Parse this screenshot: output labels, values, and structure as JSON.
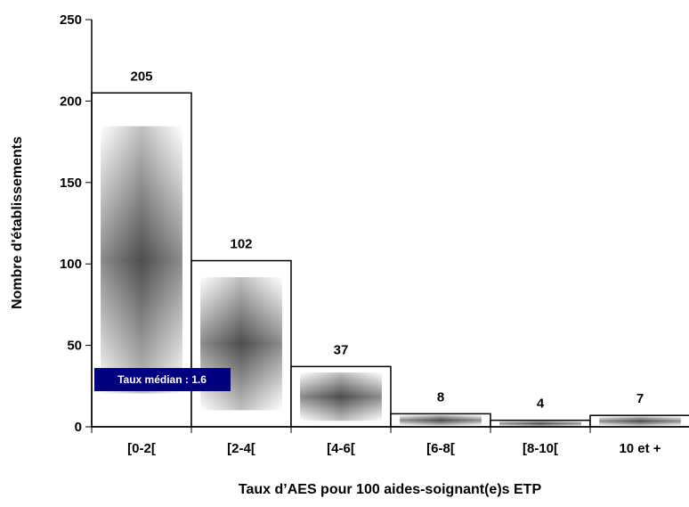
{
  "chart_data": {
    "type": "bar",
    "title": "",
    "xlabel": "Taux d’AES pour 100 aides-soignant(e)s ETP",
    "ylabel": "Nombre d'établissements",
    "categories": [
      "[0-2[",
      "[2-4[",
      "[4-6[",
      "[6-8[",
      "[8-10[",
      "10 et +"
    ],
    "values": [
      205,
      102,
      37,
      8,
      4,
      7
    ],
    "ylim": [
      0,
      250
    ],
    "yticks": [
      0,
      50,
      100,
      150,
      200,
      250
    ],
    "grid": false,
    "legend": "none",
    "bar_fill": "gradient-grey",
    "annotation": {
      "text": "Taux médian : 1.6",
      "category": "[0-2[",
      "color": "#000080"
    }
  }
}
